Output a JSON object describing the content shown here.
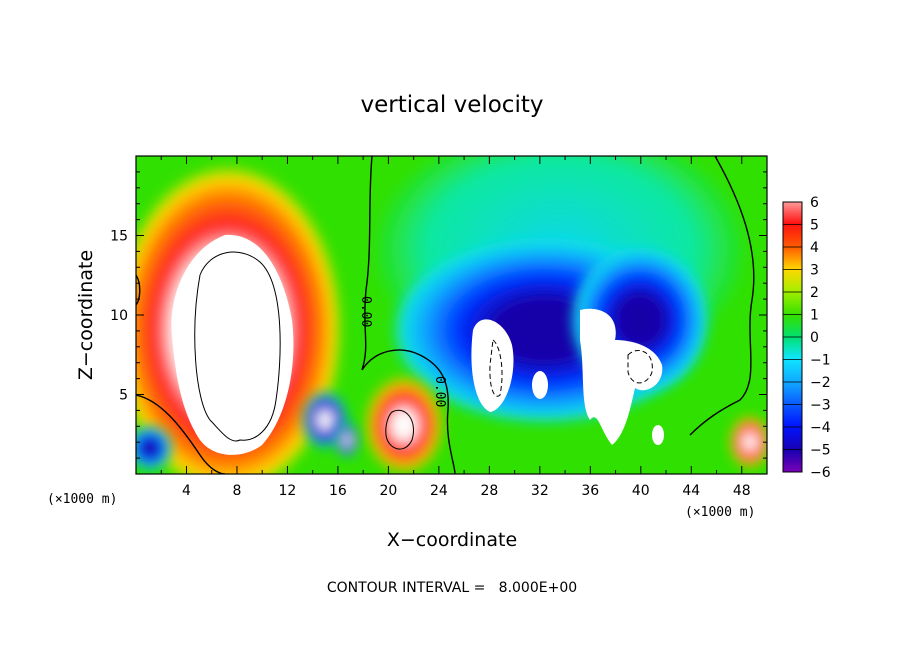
{
  "chart_data": {
    "type": "heatmap",
    "title": "vertical velocity",
    "xlabel": "X−coordinate",
    "ylabel": "Z−coordinate",
    "x_unit_left": "(×1000 m)",
    "x_unit_right": "(×1000 m)",
    "xlim": [
      0,
      50
    ],
    "ylim": [
      0,
      20
    ],
    "x_ticks": [
      4,
      8,
      12,
      16,
      20,
      24,
      28,
      32,
      36,
      40,
      44,
      48
    ],
    "y_ticks": [
      5,
      10,
      15
    ],
    "colorbar": {
      "min": -6,
      "max": 6,
      "tick_values": [
        6,
        5,
        4,
        3,
        2,
        1,
        0,
        -1,
        -2,
        -3,
        -4,
        -5,
        -6
      ],
      "tick_labels": [
        "6",
        "5",
        "4",
        "3",
        "2",
        "1",
        "0",
        "−1",
        "−2",
        "−3",
        "−4",
        "−5",
        "−6"
      ]
    },
    "contour_labels": [
      "0.00",
      "0.00"
    ],
    "contour_interval_text": "CONTOUR INTERVAL =   8.000E+00",
    "features": [
      {
        "x": 7.5,
        "z": 9.0,
        "value": 6
      },
      {
        "x": 22.5,
        "z": 2.3,
        "value": 5
      },
      {
        "x": 33.0,
        "z": 7.5,
        "value": -6
      },
      {
        "x": 48.0,
        "z": 1.5,
        "value": 5
      },
      {
        "x": 14.5,
        "z": 3.2,
        "value": -5
      }
    ]
  }
}
